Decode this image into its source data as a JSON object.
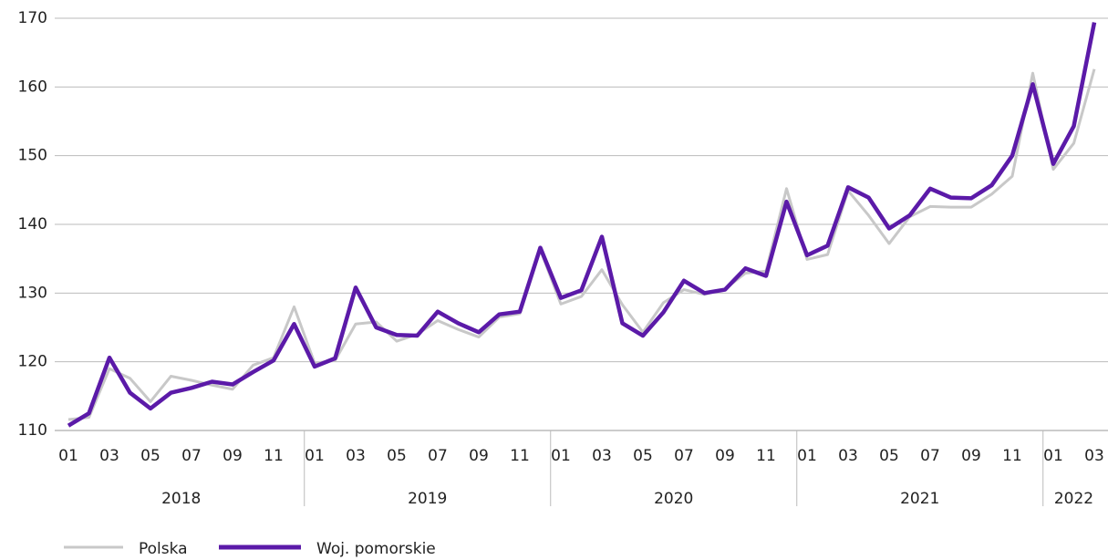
{
  "chart_data": {
    "type": "line",
    "categories": [
      "01",
      null,
      "03",
      null,
      "05",
      null,
      "07",
      null,
      "09",
      null,
      "11",
      null,
      "01",
      null,
      "03",
      null,
      "05",
      null,
      "07",
      null,
      "09",
      null,
      "11",
      null,
      "01",
      null,
      "03",
      null,
      "05",
      null,
      "07",
      null,
      "09",
      null,
      "11",
      null,
      "01",
      null,
      "03",
      null,
      "05",
      null,
      "07",
      null,
      "09",
      null,
      "11",
      null,
      "01",
      null,
      "03"
    ],
    "groups": [
      {
        "label": "2018",
        "size": 12
      },
      {
        "label": "2019",
        "size": 12
      },
      {
        "label": "2020",
        "size": 12
      },
      {
        "label": "2021",
        "size": 12
      },
      {
        "label": "2022",
        "size": 3
      }
    ],
    "series": [
      {
        "name": "Polska",
        "color": "#c8c8c8",
        "values": [
          111.6,
          111.9,
          119.0,
          117.6,
          114.2,
          117.9,
          117.3,
          116.6,
          116.0,
          119.5,
          120.6,
          128.0,
          119.8,
          120.2,
          125.5,
          125.8,
          123.0,
          124.0,
          126.0,
          124.7,
          123.6,
          126.5,
          127.0,
          136.3,
          128.4,
          129.5,
          133.4,
          128.3,
          124.3,
          128.6,
          130.5,
          129.8,
          130.6,
          132.9,
          133.2,
          145.2,
          134.9,
          135.6,
          144.9,
          141.3,
          137.2,
          141.1,
          142.6,
          142.5,
          142.5,
          144.4,
          147.0,
          162.0,
          148.0,
          151.8,
          162.6
        ]
      },
      {
        "name": "Woj. pomorskie",
        "color": "#5b1aa8",
        "values": [
          110.7,
          112.5,
          120.6,
          115.5,
          113.2,
          115.5,
          116.2,
          117.1,
          116.7,
          118.5,
          120.2,
          125.5,
          119.3,
          120.5,
          130.8,
          125.0,
          123.9,
          123.8,
          127.3,
          125.6,
          124.3,
          126.9,
          127.3,
          136.6,
          129.3,
          130.4,
          138.2,
          125.6,
          123.8,
          127.2,
          131.8,
          130.0,
          130.5,
          133.6,
          132.5,
          143.3,
          135.5,
          136.9,
          145.4,
          143.9,
          139.4,
          141.3,
          145.2,
          143.9,
          143.8,
          145.7,
          150.0,
          160.4,
          148.8,
          154.3,
          169.4
        ]
      }
    ],
    "ylim": [
      110,
      170
    ],
    "yticks": [
      110,
      120,
      130,
      140,
      150,
      160,
      170
    ],
    "grid": true
  }
}
